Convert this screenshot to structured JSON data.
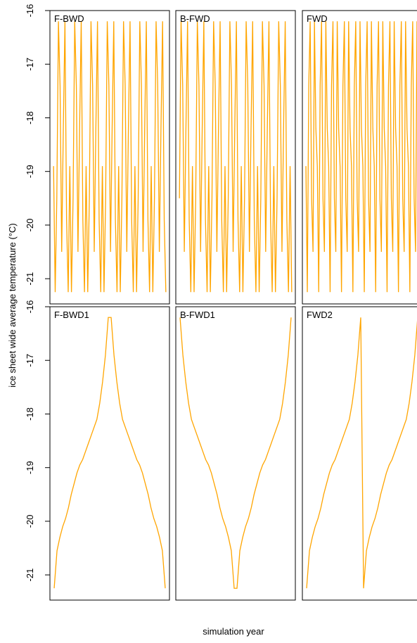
{
  "ylabel": "ice sheet wide average temperature (°C)",
  "xlabel": "simulation year",
  "chart_data": [
    {
      "type": "line",
      "title": "F-BWD",
      "color": "#FFA500",
      "ylim": [
        -21.47,
        -16
      ],
      "yticks": [
        -16,
        -17,
        -18,
        -19,
        -20,
        -21
      ],
      "values": [
        -18.9,
        -21.25,
        -19.5,
        -16.2,
        -17.4,
        -20.5,
        -18.2,
        -16.2,
        -19.9,
        -21.25,
        -18.9,
        -21.25,
        -19.5,
        -16.2,
        -17.4,
        -20.5,
        -18.2,
        -16.2,
        -19.9,
        -21.25,
        -18.9,
        -21.25,
        -19.5,
        -16.2,
        -17.4,
        -20.5,
        -18.2,
        -16.2,
        -19.9,
        -21.25,
        -18.9,
        -21.25,
        -19.5,
        -16.2,
        -17.4,
        -20.5,
        -18.2,
        -16.2,
        -19.9,
        -21.25,
        -18.9,
        -21.25,
        -19.5,
        -16.2,
        -17.4,
        -20.5,
        -18.2,
        -16.2,
        -19.9,
        -21.25,
        -18.9,
        -21.25,
        -19.5,
        -16.2,
        -17.4,
        -20.5,
        -18.2,
        -16.2,
        -19.9,
        -21.25,
        -18.9,
        -21.25,
        -19.5,
        -16.2,
        -17.4,
        -20.5,
        -18.2,
        -16.2,
        -19.9,
        -21.25
      ]
    },
    {
      "type": "line",
      "title": "B-FWD",
      "color": "#FFA500",
      "ylim": [
        -21.47,
        -16
      ],
      "values": [
        -19.5,
        -16.2,
        -17.4,
        -20.5,
        -18.2,
        -16.2,
        -19.9,
        -21.25,
        -18.9,
        -21.25,
        -19.5,
        -16.2,
        -17.4,
        -20.5,
        -18.2,
        -16.2,
        -19.9,
        -21.25,
        -18.9,
        -21.25,
        -19.5,
        -16.2,
        -17.4,
        -20.5,
        -18.2,
        -16.2,
        -19.9,
        -21.25,
        -18.9,
        -21.25,
        -19.5,
        -16.2,
        -17.4,
        -20.5,
        -18.2,
        -16.2,
        -19.9,
        -21.25,
        -18.9,
        -21.25,
        -19.5,
        -16.2,
        -17.4,
        -20.5,
        -18.2,
        -16.2,
        -19.9,
        -21.25,
        -18.9,
        -21.25,
        -19.5,
        -16.2,
        -17.4,
        -20.5,
        -18.2,
        -16.2,
        -19.9,
        -21.25,
        -18.9,
        -21.25,
        -19.5,
        -16.2,
        -17.4,
        -20.5,
        -18.2,
        -16.2,
        -19.9,
        -21.25,
        -18.9,
        -21.25
      ]
    },
    {
      "type": "line",
      "title": "FWD",
      "color": "#FFA500",
      "ylim": [
        -21.47,
        -16
      ],
      "values": [
        -18.9,
        -21.25,
        -17.4,
        -16.2,
        -19.5,
        -20.5,
        -16.2,
        -18.2,
        -18.9,
        -21.25,
        -17.4,
        -16.2,
        -19.5,
        -20.5,
        -16.2,
        -18.2,
        -18.9,
        -21.25,
        -17.4,
        -16.2,
        -19.5,
        -20.5,
        -16.2,
        -18.2,
        -18.9,
        -21.25,
        -17.4,
        -16.2,
        -19.5,
        -20.5,
        -16.2,
        -18.2,
        -18.9,
        -21.25,
        -17.4,
        -16.2,
        -19.5,
        -20.5,
        -16.2,
        -18.2,
        -18.9,
        -21.25,
        -17.4,
        -16.2,
        -19.5,
        -20.5,
        -16.2,
        -18.2,
        -18.9,
        -21.25,
        -17.4,
        -16.2,
        -19.5,
        -20.5,
        -16.2,
        -18.2,
        -18.9,
        -21.25,
        -17.4,
        -16.2,
        -19.5,
        -20.5,
        -16.2,
        -18.2,
        -18.9,
        -21.25,
        -17.4,
        -16.2,
        -19.5,
        -20.5,
        -16.2,
        -18.2,
        -18.9,
        -21.25,
        -17.4,
        -16.2,
        -19.5,
        -20.5,
        -16.2,
        -18.2
      ]
    },
    {
      "type": "line",
      "title": "F-BWD1",
      "color": "#FFA500",
      "ylim": [
        -21.47,
        -16
      ],
      "yticks": [
        -16,
        -17,
        -18,
        -19,
        -20,
        -21
      ],
      "values": [
        -21.25,
        -20.55,
        -20.3,
        -20.1,
        -19.95,
        -19.75,
        -19.5,
        -19.3,
        -19.1,
        -18.95,
        -18.85,
        -18.7,
        -18.55,
        -18.4,
        -18.25,
        -18.1,
        -17.8,
        -17.4,
        -16.9,
        -16.2,
        -16.2,
        -16.9,
        -17.4,
        -17.8,
        -18.1,
        -18.25,
        -18.4,
        -18.55,
        -18.7,
        -18.85,
        -18.95,
        -19.1,
        -19.3,
        -19.5,
        -19.75,
        -19.95,
        -20.1,
        -20.3,
        -20.55,
        -21.25
      ]
    },
    {
      "type": "line",
      "title": "B-FWD1",
      "color": "#FFA500",
      "ylim": [
        -21.47,
        -16
      ],
      "values": [
        -16.2,
        -16.9,
        -17.4,
        -17.8,
        -18.1,
        -18.25,
        -18.4,
        -18.55,
        -18.7,
        -18.85,
        -18.95,
        -19.1,
        -19.3,
        -19.5,
        -19.75,
        -19.95,
        -20.1,
        -20.3,
        -20.55,
        -21.25,
        -21.25,
        -20.55,
        -20.3,
        -20.1,
        -19.95,
        -19.75,
        -19.5,
        -19.3,
        -19.1,
        -18.95,
        -18.85,
        -18.7,
        -18.55,
        -18.4,
        -18.25,
        -18.1,
        -17.8,
        -17.4,
        -16.9,
        -16.2
      ]
    },
    {
      "type": "line",
      "title": "FWD2",
      "color": "#FFA500",
      "ylim": [
        -21.47,
        -16
      ],
      "values": [
        -21.25,
        -20.55,
        -20.3,
        -20.1,
        -19.95,
        -19.75,
        -19.5,
        -19.3,
        -19.1,
        -18.95,
        -18.85,
        -18.7,
        -18.55,
        -18.4,
        -18.25,
        -18.1,
        -17.8,
        -17.4,
        -16.9,
        -16.2,
        -21.25,
        -20.55,
        -20.3,
        -20.1,
        -19.95,
        -19.75,
        -19.5,
        -19.3,
        -19.1,
        -18.95,
        -18.85,
        -18.7,
        -18.55,
        -18.4,
        -18.25,
        -18.1,
        -17.8,
        -17.4,
        -16.9,
        -16.2
      ]
    }
  ]
}
